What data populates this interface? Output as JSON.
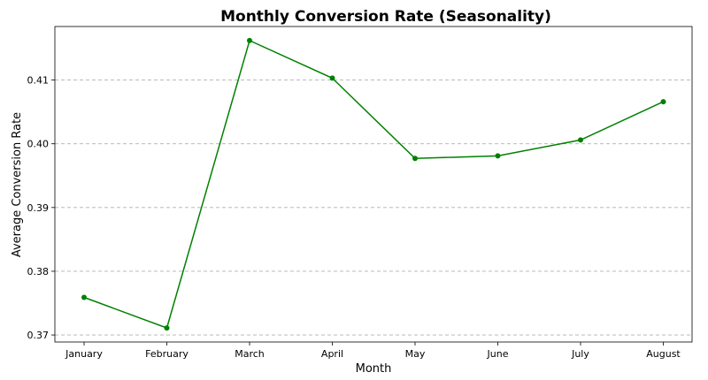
{
  "chart_data": {
    "type": "line",
    "title": "Monthly Conversion Rate (Seasonality)",
    "xlabel": "Month",
    "ylabel": "Average Conversion Rate",
    "categories": [
      "January",
      "February",
      "March",
      "April",
      "May",
      "June",
      "July",
      "August"
    ],
    "series": [
      {
        "values": [
          0.3759,
          0.3711,
          0.4162,
          0.4103,
          0.3977,
          0.3981,
          0.4006,
          0.4066
        ],
        "color": "#008000"
      }
    ],
    "ylim": [
      0.3689,
      0.4184
    ],
    "yticks": [
      "0.37",
      "0.38",
      "0.39",
      "0.40",
      "0.41"
    ],
    "grid": "y-dashed",
    "legend": "none"
  }
}
